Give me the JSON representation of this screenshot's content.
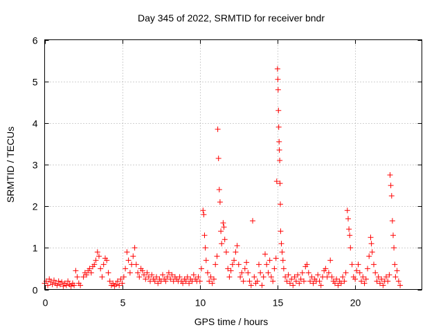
{
  "chart_data": {
    "type": "scatter",
    "title": "Day 345 of 2022, SRMTID for receiver bndr",
    "xlabel": "GPS time / hours",
    "ylabel": "SRMTID / TECUs",
    "xlim": [
      0,
      24.3
    ],
    "ylim": [
      0,
      6
    ],
    "x_ticks": [
      0,
      5,
      10,
      15,
      20
    ],
    "y_ticks": [
      0,
      1,
      2,
      3,
      4,
      5,
      6
    ],
    "grid": true,
    "marker": "plus",
    "color": "#ff0000",
    "series": [
      {
        "name": "SRMTID",
        "points": [
          [
            0.0,
            0.15
          ],
          [
            0.1,
            0.2
          ],
          [
            0.2,
            0.1
          ],
          [
            0.3,
            0.25
          ],
          [
            0.4,
            0.18
          ],
          [
            0.5,
            0.12
          ],
          [
            0.6,
            0.22
          ],
          [
            0.7,
            0.15
          ],
          [
            0.8,
            0.1
          ],
          [
            0.9,
            0.2
          ],
          [
            1.0,
            0.12
          ],
          [
            1.1,
            0.18
          ],
          [
            1.2,
            0.08
          ],
          [
            1.3,
            0.15
          ],
          [
            1.4,
            0.1
          ],
          [
            1.5,
            0.2
          ],
          [
            1.6,
            0.12
          ],
          [
            1.7,
            0.08
          ],
          [
            1.8,
            0.15
          ],
          [
            1.9,
            0.1
          ],
          [
            2.0,
            0.45
          ],
          [
            2.1,
            0.3
          ],
          [
            2.2,
            0.15
          ],
          [
            2.3,
            0.1
          ],
          [
            2.5,
            0.3
          ],
          [
            2.6,
            0.4
          ],
          [
            2.7,
            0.35
          ],
          [
            2.8,
            0.45
          ],
          [
            2.9,
            0.5
          ],
          [
            3.0,
            0.4
          ],
          [
            3.1,
            0.55
          ],
          [
            3.2,
            0.6
          ],
          [
            3.3,
            0.7
          ],
          [
            3.4,
            0.9
          ],
          [
            3.5,
            0.8
          ],
          [
            3.6,
            0.5
          ],
          [
            3.7,
            0.3
          ],
          [
            3.8,
            0.6
          ],
          [
            3.9,
            0.75
          ],
          [
            4.0,
            0.7
          ],
          [
            4.1,
            0.4
          ],
          [
            4.2,
            0.2
          ],
          [
            4.3,
            0.1
          ],
          [
            4.4,
            0.15
          ],
          [
            4.5,
            0.08
          ],
          [
            4.6,
            0.12
          ],
          [
            4.7,
            0.2
          ],
          [
            4.8,
            0.1
          ],
          [
            4.9,
            0.25
          ],
          [
            5.0,
            0.15
          ],
          [
            5.1,
            0.3
          ],
          [
            5.2,
            0.5
          ],
          [
            5.3,
            0.9
          ],
          [
            5.4,
            0.7
          ],
          [
            5.5,
            0.4
          ],
          [
            5.6,
            0.6
          ],
          [
            5.7,
            0.8
          ],
          [
            5.8,
            1.0
          ],
          [
            5.9,
            0.6
          ],
          [
            6.0,
            0.4
          ],
          [
            6.1,
            0.3
          ],
          [
            6.2,
            0.5
          ],
          [
            6.3,
            0.45
          ],
          [
            6.4,
            0.35
          ],
          [
            6.5,
            0.25
          ],
          [
            6.6,
            0.4
          ],
          [
            6.7,
            0.3
          ],
          [
            6.8,
            0.2
          ],
          [
            6.9,
            0.35
          ],
          [
            7.0,
            0.25
          ],
          [
            7.1,
            0.2
          ],
          [
            7.2,
            0.3
          ],
          [
            7.3,
            0.15
          ],
          [
            7.4,
            0.25
          ],
          [
            7.5,
            0.2
          ],
          [
            7.6,
            0.35
          ],
          [
            7.7,
            0.25
          ],
          [
            7.8,
            0.2
          ],
          [
            7.9,
            0.3
          ],
          [
            8.0,
            0.4
          ],
          [
            8.1,
            0.25
          ],
          [
            8.2,
            0.35
          ],
          [
            8.3,
            0.2
          ],
          [
            8.4,
            0.3
          ],
          [
            8.5,
            0.25
          ],
          [
            8.6,
            0.2
          ],
          [
            8.7,
            0.3
          ],
          [
            8.8,
            0.2
          ],
          [
            8.9,
            0.15
          ],
          [
            9.0,
            0.25
          ],
          [
            9.1,
            0.2
          ],
          [
            9.2,
            0.3
          ],
          [
            9.3,
            0.15
          ],
          [
            9.4,
            0.25
          ],
          [
            9.5,
            0.2
          ],
          [
            9.6,
            0.35
          ],
          [
            9.7,
            0.25
          ],
          [
            9.8,
            0.2
          ],
          [
            9.9,
            0.3
          ],
          [
            10.0,
            0.2
          ],
          [
            10.1,
            0.5
          ],
          [
            10.2,
            1.9
          ],
          [
            10.25,
            1.8
          ],
          [
            10.3,
            1.3
          ],
          [
            10.35,
            1.0
          ],
          [
            10.4,
            0.7
          ],
          [
            10.5,
            0.4
          ],
          [
            10.6,
            0.2
          ],
          [
            10.7,
            0.3
          ],
          [
            10.8,
            0.15
          ],
          [
            10.9,
            0.25
          ],
          [
            11.0,
            0.6
          ],
          [
            11.1,
            0.8
          ],
          [
            11.15,
            3.85
          ],
          [
            11.2,
            3.15
          ],
          [
            11.25,
            2.4
          ],
          [
            11.3,
            2.1
          ],
          [
            11.35,
            1.4
          ],
          [
            11.4,
            1.1
          ],
          [
            11.5,
            1.6
          ],
          [
            11.55,
            1.5
          ],
          [
            11.6,
            1.2
          ],
          [
            11.7,
            0.9
          ],
          [
            11.8,
            0.5
          ],
          [
            11.9,
            0.3
          ],
          [
            12.0,
            0.45
          ],
          [
            12.1,
            0.6
          ],
          [
            12.2,
            0.7
          ],
          [
            12.3,
            0.9
          ],
          [
            12.4,
            1.05
          ],
          [
            12.5,
            0.6
          ],
          [
            12.6,
            0.3
          ],
          [
            12.7,
            0.4
          ],
          [
            12.8,
            0.2
          ],
          [
            12.9,
            0.5
          ],
          [
            13.0,
            0.65
          ],
          [
            13.1,
            0.4
          ],
          [
            13.2,
            0.2
          ],
          [
            13.3,
            0.1
          ],
          [
            13.4,
            1.65
          ],
          [
            13.5,
            0.3
          ],
          [
            13.6,
            0.15
          ],
          [
            13.7,
            0.2
          ],
          [
            13.8,
            0.6
          ],
          [
            13.9,
            0.4
          ],
          [
            14.0,
            0.1
          ],
          [
            14.1,
            0.3
          ],
          [
            14.2,
            0.85
          ],
          [
            14.3,
            0.6
          ],
          [
            14.4,
            0.4
          ],
          [
            14.5,
            0.7
          ],
          [
            14.6,
            0.3
          ],
          [
            14.7,
            0.2
          ],
          [
            14.8,
            0.5
          ],
          [
            14.9,
            0.75
          ],
          [
            14.95,
            2.6
          ],
          [
            15.0,
            5.3
          ],
          [
            15.02,
            5.05
          ],
          [
            15.04,
            4.8
          ],
          [
            15.06,
            4.3
          ],
          [
            15.08,
            3.9
          ],
          [
            15.1,
            3.55
          ],
          [
            15.12,
            3.35
          ],
          [
            15.14,
            3.1
          ],
          [
            15.16,
            2.55
          ],
          [
            15.18,
            2.05
          ],
          [
            15.2,
            1.4
          ],
          [
            15.25,
            1.1
          ],
          [
            15.3,
            0.9
          ],
          [
            15.35,
            0.7
          ],
          [
            15.4,
            0.5
          ],
          [
            15.5,
            0.3
          ],
          [
            15.6,
            0.2
          ],
          [
            15.7,
            0.35
          ],
          [
            15.8,
            0.15
          ],
          [
            15.9,
            0.25
          ],
          [
            16.0,
            0.1
          ],
          [
            16.1,
            0.3
          ],
          [
            16.2,
            0.2
          ],
          [
            16.3,
            0.35
          ],
          [
            16.4,
            0.15
          ],
          [
            16.5,
            0.25
          ],
          [
            16.6,
            0.4
          ],
          [
            16.7,
            0.2
          ],
          [
            16.8,
            0.55
          ],
          [
            16.9,
            0.6
          ],
          [
            17.0,
            0.4
          ],
          [
            17.1,
            0.2
          ],
          [
            17.2,
            0.3
          ],
          [
            17.3,
            0.15
          ],
          [
            17.4,
            0.25
          ],
          [
            17.5,
            0.2
          ],
          [
            17.6,
            0.35
          ],
          [
            17.7,
            0.2
          ],
          [
            17.8,
            0.1
          ],
          [
            17.9,
            0.3
          ],
          [
            18.0,
            0.45
          ],
          [
            18.1,
            0.5
          ],
          [
            18.2,
            0.3
          ],
          [
            18.3,
            0.4
          ],
          [
            18.4,
            0.7
          ],
          [
            18.5,
            0.3
          ],
          [
            18.6,
            0.2
          ],
          [
            18.7,
            0.15
          ],
          [
            18.8,
            0.25
          ],
          [
            18.9,
            0.1
          ],
          [
            19.0,
            0.2
          ],
          [
            19.1,
            0.15
          ],
          [
            19.2,
            0.3
          ],
          [
            19.3,
            0.2
          ],
          [
            19.4,
            0.4
          ],
          [
            19.5,
            1.9
          ],
          [
            19.55,
            1.7
          ],
          [
            19.6,
            1.45
          ],
          [
            19.65,
            1.3
          ],
          [
            19.7,
            1.0
          ],
          [
            19.8,
            0.6
          ],
          [
            19.9,
            0.3
          ],
          [
            20.0,
            0.25
          ],
          [
            20.1,
            0.45
          ],
          [
            20.2,
            0.6
          ],
          [
            20.3,
            0.4
          ],
          [
            20.4,
            0.2
          ],
          [
            20.5,
            0.3
          ],
          [
            20.6,
            0.15
          ],
          [
            20.7,
            0.25
          ],
          [
            20.8,
            0.5
          ],
          [
            20.9,
            0.8
          ],
          [
            21.0,
            1.25
          ],
          [
            21.05,
            1.1
          ],
          [
            21.1,
            0.9
          ],
          [
            21.2,
            0.6
          ],
          [
            21.3,
            0.4
          ],
          [
            21.4,
            0.2
          ],
          [
            21.5,
            0.3
          ],
          [
            21.6,
            0.15
          ],
          [
            21.7,
            0.25
          ],
          [
            21.8,
            0.1
          ],
          [
            21.9,
            0.2
          ],
          [
            22.0,
            0.3
          ],
          [
            22.1,
            0.2
          ],
          [
            22.2,
            0.35
          ],
          [
            22.25,
            2.75
          ],
          [
            22.3,
            2.5
          ],
          [
            22.35,
            2.25
          ],
          [
            22.4,
            1.65
          ],
          [
            22.45,
            1.3
          ],
          [
            22.5,
            1.0
          ],
          [
            22.55,
            0.6
          ],
          [
            22.6,
            0.3
          ],
          [
            22.7,
            0.45
          ],
          [
            22.8,
            0.2
          ],
          [
            22.9,
            0.1
          ]
        ]
      }
    ]
  }
}
